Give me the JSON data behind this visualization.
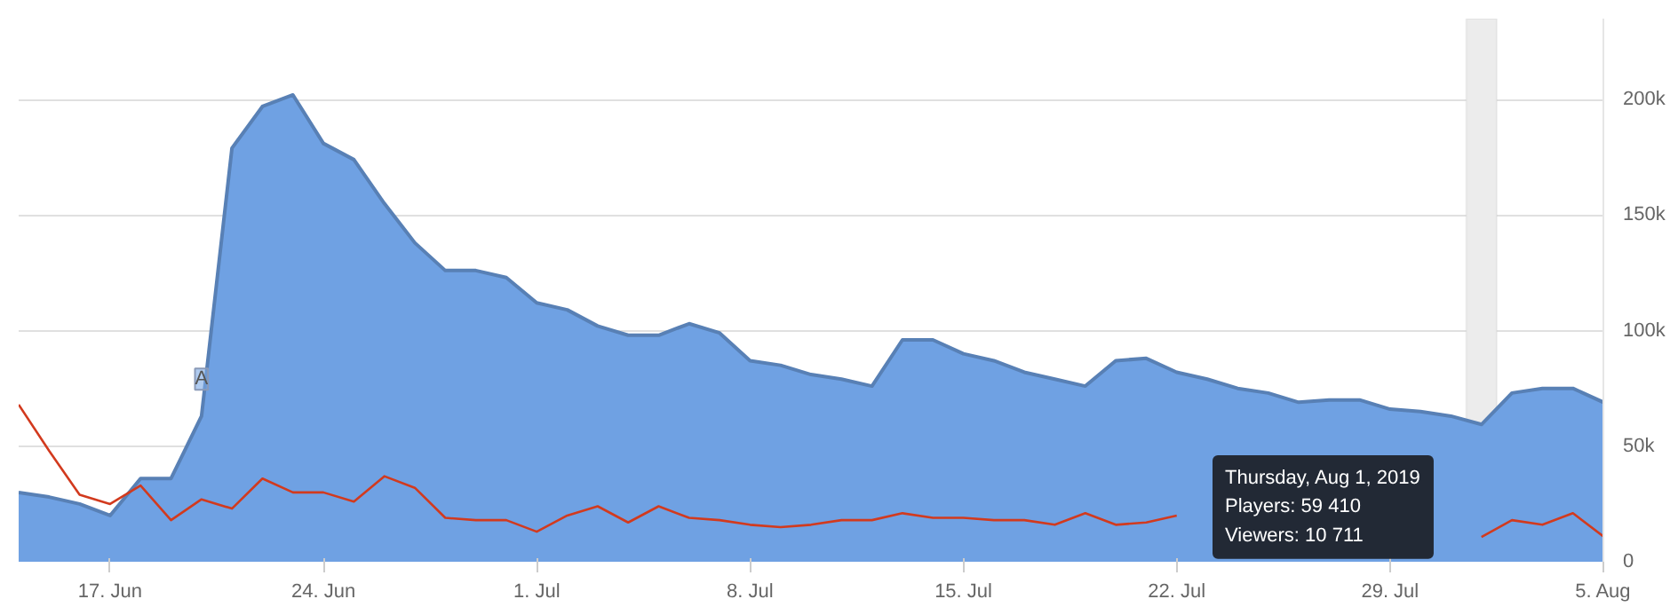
{
  "chart_data": {
    "type": "area",
    "x": [
      "2019-06-14",
      "2019-06-15",
      "2019-06-16",
      "2019-06-17",
      "2019-06-18",
      "2019-06-19",
      "2019-06-20",
      "2019-06-21",
      "2019-06-22",
      "2019-06-23",
      "2019-06-24",
      "2019-06-25",
      "2019-06-26",
      "2019-06-27",
      "2019-06-28",
      "2019-06-29",
      "2019-06-30",
      "2019-07-01",
      "2019-07-02",
      "2019-07-03",
      "2019-07-04",
      "2019-07-05",
      "2019-07-06",
      "2019-07-07",
      "2019-07-08",
      "2019-07-09",
      "2019-07-10",
      "2019-07-11",
      "2019-07-12",
      "2019-07-13",
      "2019-07-14",
      "2019-07-15",
      "2019-07-16",
      "2019-07-17",
      "2019-07-18",
      "2019-07-19",
      "2019-07-20",
      "2019-07-21",
      "2019-07-22",
      "2019-07-23",
      "2019-07-24",
      "2019-07-25",
      "2019-07-26",
      "2019-07-27",
      "2019-07-28",
      "2019-07-29",
      "2019-07-30",
      "2019-07-31",
      "2019-08-01",
      "2019-08-02",
      "2019-08-03",
      "2019-08-04",
      "2019-08-05"
    ],
    "series": [
      {
        "color": "#6fa1e3",
        "values": [
          30000,
          28000,
          25000,
          20000,
          36000,
          36000,
          63000,
          179000,
          197000,
          202000,
          181000,
          174000,
          155000,
          138000,
          126000,
          126000,
          123000,
          112000,
          109000,
          102000,
          98000,
          98000,
          103000,
          99000,
          87000,
          85000,
          81000,
          79000,
          76000,
          96000,
          96000,
          90000,
          87000,
          82000,
          79000,
          76000,
          87000,
          88000,
          82000,
          79000,
          75000,
          73000,
          69000,
          70000,
          70000,
          66000,
          65000,
          63000,
          59410,
          73000,
          75000,
          75000,
          69000
        ]
      },
      {
        "type": "line",
        "color": "#d23a1e",
        "values": [
          68000,
          48000,
          29000,
          25000,
          33000,
          18000,
          27000,
          23000,
          36000,
          30000,
          30000,
          26000,
          37000,
          32000,
          19000,
          18000,
          18000,
          13000,
          20000,
          24000,
          17000,
          24000,
          19000,
          18000,
          16000,
          15000,
          16000,
          18000,
          18000,
          21000,
          19000,
          19000,
          18000,
          18000,
          16000,
          21000,
          16000,
          17000,
          20000,
          null,
          null,
          null,
          null,
          null,
          null,
          null,
          null,
          null,
          10711,
          18000,
          16000,
          21000,
          11000
        ]
      }
    ],
    "xlim": [
      "2019-06-14",
      "2019-08-05"
    ],
    "xticks": [
      {
        "value": "2019-06-17",
        "label": "17. Jun"
      },
      {
        "value": "2019-06-24",
        "label": "24. Jun"
      },
      {
        "value": "2019-07-01",
        "label": "1. Jul"
      },
      {
        "value": "2019-07-08",
        "label": "8. Jul"
      },
      {
        "value": "2019-07-15",
        "label": "15. Jul"
      },
      {
        "value": "2019-07-22",
        "label": "22. Jul"
      },
      {
        "value": "2019-07-29",
        "label": "29. Jul"
      },
      {
        "value": "2019-08-05",
        "label": "5. Aug"
      }
    ],
    "ylim": [
      0,
      235000
    ],
    "yticks": [
      {
        "value": 0,
        "label": "0"
      },
      {
        "value": 50000,
        "label": "50k"
      },
      {
        "value": 100000,
        "label": "100k"
      },
      {
        "value": 150000,
        "label": "150k"
      },
      {
        "value": 200000,
        "label": "200k"
      }
    ],
    "bands": [
      {
        "axis": "x",
        "from": "2019-07-31T12:00",
        "to": "2019-08-01T12:00",
        "color": "#ececec"
      }
    ],
    "annotations": [
      {
        "text": "A",
        "x": "2019-06-20",
        "y": 79000
      },
      "Thursday, Aug 1, 2019",
      "Players: 59 410",
      "Viewers: 10 711"
    ],
    "grid": "y",
    "marker": "none",
    "line_style": "solid"
  }
}
